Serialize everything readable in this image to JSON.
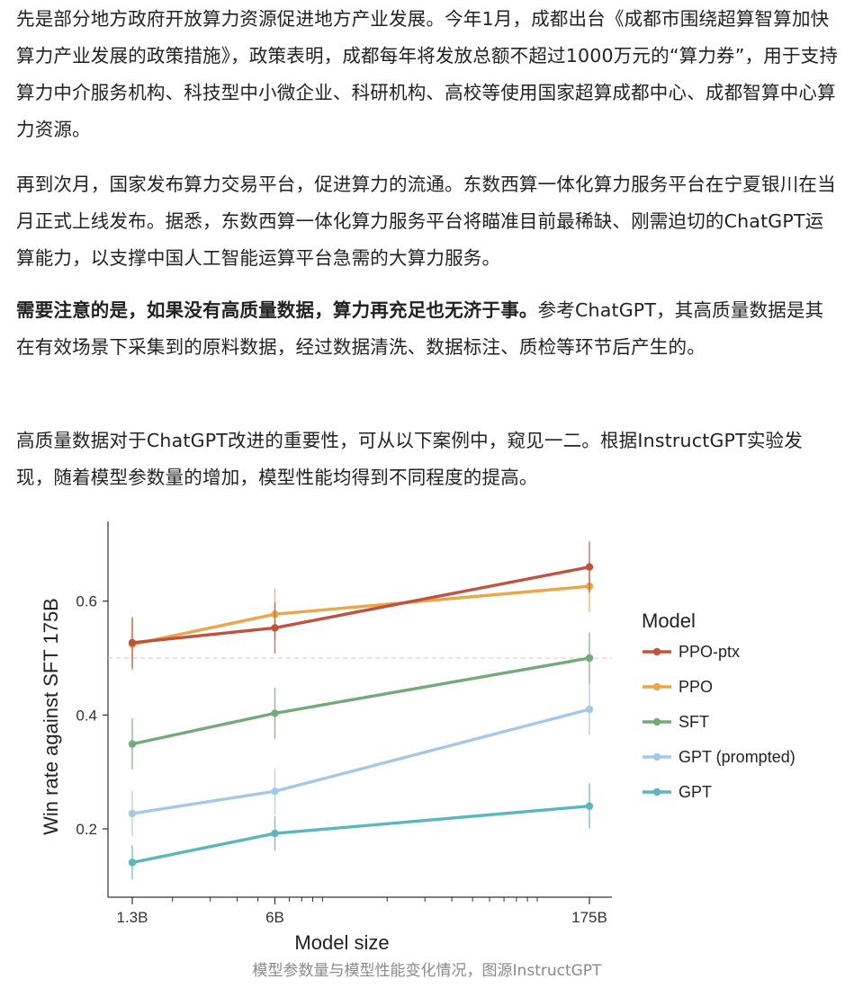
{
  "article": {
    "p1": "先是部分地方政府开放算力资源促进地方产业发展。今年1月，成都出台《成都市围绕超算智算加快算力产业发展的政策措施》，政策表明，成都每年将发放总额不超过1000万元的“算力券”，用于支持算力中介服务机构、科技型中小微企业、科研机构、高校等使用国家超算成都中心、成都智算中心算力资源。",
    "p2": "再到次月，国家发布算力交易平台，促进算力的流通。东数西算一体化算力服务平台在宁夏银川在当月正式上线发布。据悉，东数西算一体化算力服务平台将瞄准目前最稀缺、刚需迫切的ChatGPT运算能力，以支撑中国人工智能运算平台急需的大算力服务。",
    "p3_bold": "需要注意的是，如果没有高质量数据，算力再充足也无济于事。",
    "p3_rest": "参考ChatGPT，其高质量数据是其在有效场景下采集到的原料数据，经过数据清洗、数据标注、质检等环节后产生的。",
    "p4": "高质量数据对于ChatGPT改进的重要性，可从以下案例中，窥见一二。根据InstructGPT实验发现，随着模型参数量的增加，模型性能均得到不同程度的提高。"
  },
  "caption": "模型参数量与模型性能变化情况，图源InstructGPT",
  "chart_data": {
    "type": "line",
    "title": "",
    "xlabel": "Model size",
    "ylabel": "Win rate against SFT 175B",
    "x_scale": "log",
    "categories": [
      "1.3B",
      "6B",
      "175B"
    ],
    "x": [
      1.3,
      6,
      175
    ],
    "xlim": [
      1.3,
      175
    ],
    "ylim": [
      0.08,
      0.74
    ],
    "yticks": [
      0.2,
      0.4,
      0.6
    ],
    "ytick_labels": [
      "0.2",
      "0.4",
      "0.6"
    ],
    "reference_line": 0.5,
    "legend_title": "Model",
    "legend_position": "right",
    "series": [
      {
        "name": "PPO-ptx",
        "color": "#c0533f",
        "values": [
          0.527,
          0.553,
          0.66
        ],
        "errors": [
          0.045,
          0.045,
          0.045
        ]
      },
      {
        "name": "PPO",
        "color": "#e8a84a",
        "values": [
          0.524,
          0.577,
          0.626
        ],
        "errors": [
          0.045,
          0.045,
          0.045
        ]
      },
      {
        "name": "SFT",
        "color": "#72aa78",
        "values": [
          0.349,
          0.403,
          0.5
        ],
        "errors": [
          0.045,
          0.045,
          0.045
        ]
      },
      {
        "name": "GPT (prompted)",
        "color": "#a4c8e8",
        "values": [
          0.227,
          0.266,
          0.41
        ],
        "errors": [
          0.04,
          0.04,
          0.045
        ]
      },
      {
        "name": "GPT",
        "color": "#5bb6bf",
        "values": [
          0.141,
          0.192,
          0.24
        ],
        "errors": [
          0.03,
          0.03,
          0.04
        ]
      }
    ]
  }
}
